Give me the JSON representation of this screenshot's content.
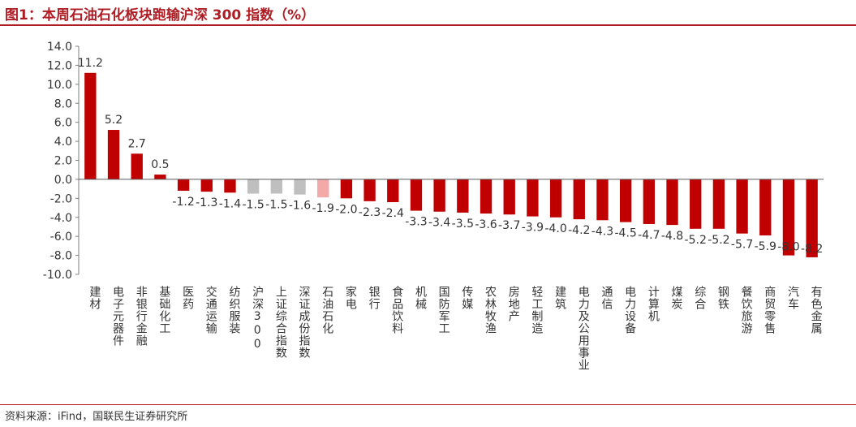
{
  "title": "图1：本周石油石化板块跑输沪深 300 指数（%）",
  "source": "资料来源：iFind，国联民生证券研究所",
  "colors": {
    "up": "#c00000",
    "down": "#c00000",
    "index": "#bfbfbf",
    "highlight": "#f4a9a9",
    "title": "#b01c24"
  },
  "chart_data": {
    "type": "bar",
    "ylim": [
      -10,
      14
    ],
    "yticks": [
      "14.0",
      "12.0",
      "10.0",
      "8.0",
      "6.0",
      "4.0",
      "2.0",
      "0.0",
      "-2.0",
      "-4.0",
      "-6.0",
      "-8.0",
      "-10.0"
    ],
    "ytick_values": [
      14,
      12,
      10,
      8,
      6,
      4,
      2,
      0,
      -2,
      -4,
      -6,
      -8,
      -10
    ],
    "categories": [
      "建材",
      "电子元器件",
      "非银行金融",
      "基础化工",
      "医药",
      "交通运输",
      "纺织服装",
      "沪深300",
      "上证综合指数",
      "深证成份指数",
      "石油石化",
      "家电",
      "银行",
      "食品饮料",
      "机械",
      "国防军工",
      "传媒",
      "农林牧渔",
      "房地产",
      "轻工制造",
      "建筑",
      "电力及公用事业",
      "通信",
      "电力设备",
      "计算机",
      "煤炭",
      "综合",
      "钢铁",
      "餐饮旅游",
      "商贸零售",
      "汽车",
      "有色金属"
    ],
    "values": [
      11.2,
      5.2,
      2.7,
      0.5,
      -1.2,
      -1.3,
      -1.4,
      -1.5,
      -1.5,
      -1.6,
      -1.9,
      -2.0,
      -2.3,
      -2.4,
      -3.3,
      -3.4,
      -3.5,
      -3.6,
      -3.7,
      -3.9,
      -4.0,
      -4.2,
      -4.3,
      -4.5,
      -4.7,
      -4.8,
      -5.2,
      -5.2,
      -5.7,
      -5.9,
      -8.0,
      -8.2
    ],
    "labels": [
      "11.2",
      "5.2",
      "2.7",
      "0.5",
      "-1.2",
      "-1.3",
      "-1.4",
      "-1.5",
      "-1.5",
      "-1.6",
      "-1.9",
      "-2.0",
      "-2.3",
      "-2.4",
      "-3.3",
      "-3.4",
      "-3.5",
      "-3.6",
      "-3.7",
      "-3.9",
      "-4.0",
      "-4.2",
      "-4.3",
      "-4.5",
      "-4.7",
      "-4.8",
      "-5.2",
      "-5.2",
      "-5.7",
      "-5.9",
      "-8.0",
      "-8.2"
    ],
    "grid": false,
    "legend": "none"
  }
}
